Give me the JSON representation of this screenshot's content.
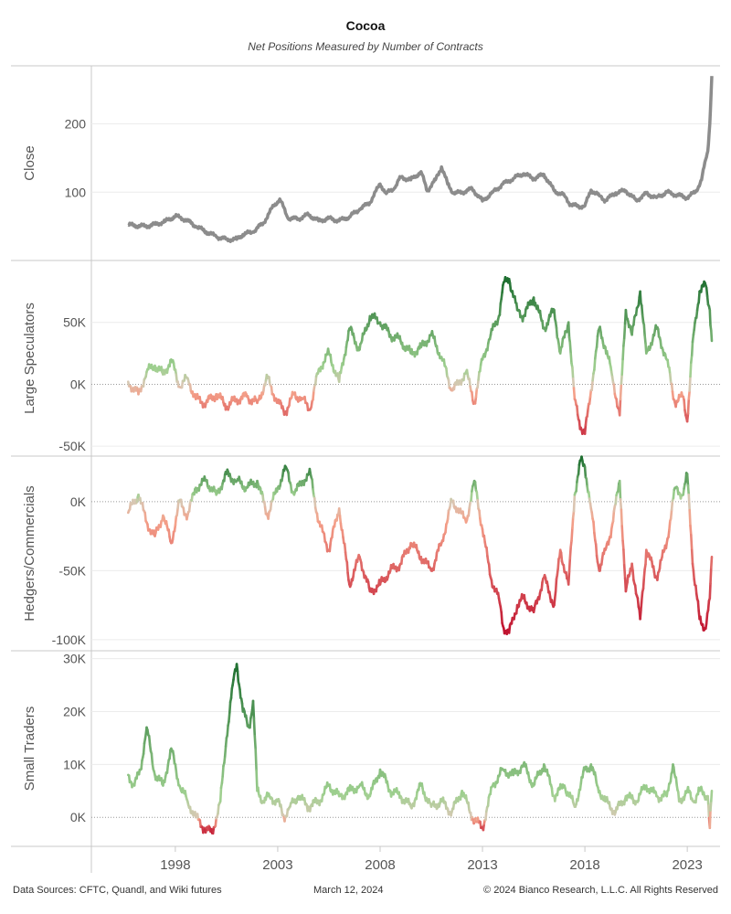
{
  "title": "Cocoa",
  "subtitle": "Net Positions Measured by Number of Contracts",
  "footer": {
    "sources": "Data Sources: CFTC, Quandl, and Wiki futures",
    "date": "March 12, 2024",
    "copyright": "© 2024 Bianco Research, L.L.C. All Rights Reserved"
  },
  "colors": {
    "close": "#8c8c8c",
    "negative_strong": "#c0122f",
    "negative_light": "#f4a089",
    "neutral": "#d8c8b4",
    "positive_light": "#9fd090",
    "positive_strong": "#1e6f30"
  },
  "chart_data": {
    "type": "line",
    "x_axis": {
      "ticks": [
        1998,
        2003,
        2008,
        2013,
        2018,
        2023
      ],
      "range": [
        1993.9,
        2024.6
      ]
    },
    "panels": [
      {
        "name": "close",
        "ylabel": "Close",
        "ylim": [
          0,
          285
        ],
        "yticks": [
          100,
          200
        ],
        "ytick_labels": [
          "100",
          "200"
        ],
        "zero_line": false,
        "color_mode": "gray",
        "series": [
          {
            "x": [
              1995.7,
              1996.5,
              1997.0,
              1997.5,
              1998.0,
              1998.5,
              1999.0,
              1999.5,
              2000.0,
              2000.5,
              2001.0,
              2001.3,
              2001.8,
              2002.3,
              2002.8,
              2003.1,
              2003.5,
              2004.0,
              2004.5,
              2005.0,
              2005.5,
              2006.0,
              2006.5,
              2007.0,
              2007.5,
              2008.0,
              2008.3,
              2008.7,
              2009.0,
              2009.5,
              2010.0,
              2010.3,
              2010.7,
              2011.0,
              2011.3,
              2011.6,
              2012.0,
              2012.5,
              2013.0,
              2013.5,
              2014.0,
              2014.5,
              2015.0,
              2015.5,
              2016.0,
              2016.5,
              2017.0,
              2017.3,
              2017.7,
              2018.0,
              2018.3,
              2018.7,
              2019.0,
              2019.5,
              2020.0,
              2020.5,
              2021.0,
              2021.5,
              2022.0,
              2022.5,
              2023.0,
              2023.4,
              2023.7,
              2023.9,
              2024.0,
              2024.1,
              2024.2
            ],
            "y": [
              52,
              50,
              53,
              57,
              65,
              60,
              50,
              42,
              35,
              31,
              31,
              38,
              42,
              55,
              80,
              90,
              62,
              61,
              67,
              58,
              62,
              58,
              64,
              75,
              85,
              112,
              98,
              106,
              122,
              118,
              130,
              102,
              118,
              137,
              112,
              98,
              100,
              105,
              87,
              100,
              112,
              120,
              127,
              120,
              126,
              102,
              95,
              82,
              79,
              80,
              103,
              95,
              88,
              99,
              102,
              88,
              98,
              92,
              100,
              96,
              92,
              100,
              118,
              148,
              160,
              200,
              270
            ]
          }
        ]
      },
      {
        "name": "large-speculators",
        "ylabel": "Large Speculators",
        "ylim": [
          -58000,
          100000
        ],
        "yticks": [
          -50000,
          0,
          50000
        ],
        "ytick_labels": [
          "-50K",
          "0K",
          "50K"
        ],
        "zero_line": true,
        "color_mode": "diverging",
        "cmin": -50000,
        "cmax": 85000,
        "series": [
          {
            "x": [
              1995.7,
              1996.2,
              1996.6,
              1997.0,
              1997.4,
              1997.8,
              1998.2,
              1998.6,
              1999.0,
              1999.5,
              2000.0,
              2000.5,
              2001.0,
              2001.5,
              2002.0,
              2002.5,
              2003.0,
              2003.4,
              2003.8,
              2004.2,
              2004.6,
              2005.0,
              2005.5,
              2006.0,
              2006.5,
              2007.0,
              2007.5,
              2008.0,
              2008.5,
              2009.0,
              2009.5,
              2010.0,
              2010.5,
              2011.0,
              2011.5,
              2011.8,
              2012.2,
              2012.6,
              2013.0,
              2013.4,
              2013.8,
              2014.0,
              2014.3,
              2014.7,
              2015.0,
              2015.5,
              2016.0,
              2016.5,
              2016.8,
              2017.2,
              2017.5,
              2017.8,
              2018.0,
              2018.3,
              2018.7,
              2019.0,
              2019.3,
              2019.7,
              2020.0,
              2020.3,
              2020.7,
              2021.0,
              2021.5,
              2022.0,
              2022.4,
              2022.8,
              2023.0,
              2023.3,
              2023.6,
              2023.9,
              2024.1,
              2024.2
            ],
            "y": [
              2000,
              -8000,
              10000,
              15000,
              8000,
              20000,
              -2000,
              5000,
              -12000,
              -15000,
              -8000,
              -18000,
              -12000,
              -10000,
              -15000,
              5000,
              -15000,
              -22000,
              -8000,
              -12000,
              -20000,
              12000,
              25000,
              2000,
              45000,
              28000,
              55000,
              50000,
              40000,
              35000,
              25000,
              30000,
              40000,
              22000,
              -5000,
              0,
              10000,
              -15000,
              20000,
              40000,
              55000,
              80000,
              85000,
              60000,
              55000,
              70000,
              45000,
              60000,
              25000,
              50000,
              -12000,
              -35000,
              -40000,
              -5000,
              45000,
              30000,
              10000,
              -25000,
              60000,
              40000,
              75000,
              25000,
              45000,
              20000,
              -15000,
              -10000,
              -30000,
              40000,
              75000,
              80000,
              60000,
              35000
            ]
          }
        ]
      },
      {
        "name": "hedgers-commercials",
        "ylabel": "Hedgers/Commercials",
        "ylim": [
          -108000,
          33000
        ],
        "yticks": [
          -100000,
          -50000,
          0
        ],
        "ytick_labels": [
          "-100K",
          "-50K",
          "0K"
        ],
        "zero_line": true,
        "color_mode": "diverging",
        "cmin": -95000,
        "cmax": 30000,
        "series": [
          {
            "x": [
              1995.7,
              1996.2,
              1996.6,
              1997.0,
              1997.4,
              1997.8,
              1998.2,
              1998.6,
              1999.0,
              1999.5,
              2000.0,
              2000.5,
              2001.0,
              2001.5,
              2002.0,
              2002.5,
              2003.0,
              2003.4,
              2003.8,
              2004.2,
              2004.6,
              2005.0,
              2005.5,
              2006.0,
              2006.5,
              2007.0,
              2007.5,
              2008.0,
              2008.5,
              2009.0,
              2009.5,
              2010.0,
              2010.5,
              2011.0,
              2011.5,
              2011.8,
              2012.2,
              2012.6,
              2013.0,
              2013.4,
              2013.8,
              2014.0,
              2014.3,
              2014.7,
              2015.0,
              2015.5,
              2016.0,
              2016.5,
              2016.8,
              2017.2,
              2017.5,
              2017.8,
              2018.0,
              2018.3,
              2018.7,
              2019.0,
              2019.3,
              2019.7,
              2020.0,
              2020.3,
              2020.7,
              2021.0,
              2021.5,
              2022.0,
              2022.4,
              2022.8,
              2023.0,
              2023.3,
              2023.6,
              2023.9,
              2024.1,
              2024.2
            ],
            "y": [
              -8000,
              5000,
              -15000,
              -25000,
              -10000,
              -30000,
              0,
              -10000,
              10000,
              15000,
              5000,
              20000,
              15000,
              10000,
              15000,
              -10000,
              10000,
              25000,
              5000,
              15000,
              20000,
              -15000,
              -35000,
              -5000,
              -60000,
              -40000,
              -65000,
              -60000,
              -50000,
              -45000,
              -30000,
              -40000,
              -50000,
              -30000,
              0,
              -5000,
              -15000,
              15000,
              -20000,
              -55000,
              -70000,
              -90000,
              -95000,
              -75000,
              -70000,
              -80000,
              -55000,
              -75000,
              -35000,
              -60000,
              5000,
              30000,
              25000,
              -5000,
              -50000,
              -35000,
              -20000,
              15000,
              -65000,
              -45000,
              -85000,
              -35000,
              -55000,
              -30000,
              10000,
              5000,
              20000,
              -50000,
              -85000,
              -92000,
              -70000,
              -40000
            ]
          }
        ]
      },
      {
        "name": "small-traders",
        "ylabel": "Small Traders",
        "ylim": [
          -5500,
          31500
        ],
        "yticks": [
          0,
          10000,
          20000,
          30000
        ],
        "ytick_labels": [
          "0K",
          "10K",
          "20K",
          "30K"
        ],
        "zero_line": true,
        "color_mode": "diverging",
        "cmin": -3000,
        "cmax": 29000,
        "series": [
          {
            "x": [
              1995.7,
              1996.0,
              1996.3,
              1996.6,
              1997.0,
              1997.4,
              1997.8,
              1998.2,
              1998.6,
              1999.0,
              1999.4,
              1999.8,
              2000.2,
              2000.5,
              2000.8,
              2001.0,
              2001.3,
              2001.6,
              2001.8,
              2002.0,
              2002.3,
              2002.6,
              2003.0,
              2003.3,
              2003.6,
              2004.0,
              2004.5,
              2005.0,
              2005.5,
              2006.0,
              2006.5,
              2007.0,
              2007.5,
              2008.0,
              2008.5,
              2009.0,
              2009.5,
              2010.0,
              2010.5,
              2011.0,
              2011.5,
              2012.0,
              2012.5,
              2013.0,
              2013.5,
              2014.0,
              2014.5,
              2015.0,
              2015.5,
              2016.0,
              2016.5,
              2017.0,
              2017.5,
              2018.0,
              2018.3,
              2018.6,
              2019.0,
              2019.5,
              2020.0,
              2020.5,
              2021.0,
              2021.5,
              2022.0,
              2022.3,
              2022.6,
              2023.0,
              2023.3,
              2023.6,
              2024.0,
              2024.1,
              2024.2
            ],
            "y": [
              8000,
              6000,
              9000,
              17000,
              8000,
              6000,
              13000,
              6000,
              3000,
              0,
              -2000,
              -3000,
              3000,
              15000,
              25000,
              29000,
              20000,
              17000,
              22000,
              5000,
              3000,
              4000,
              3000,
              0,
              2000,
              4000,
              2000,
              3000,
              6000,
              4000,
              5000,
              6000,
              4000,
              9000,
              5000,
              4000,
              2000,
              6000,
              2000,
              3000,
              1000,
              5000,
              0,
              -2000,
              6000,
              9000,
              8000,
              10000,
              6000,
              10000,
              4000,
              6000,
              2000,
              9000,
              10000,
              6000,
              3000,
              1000,
              4000,
              3000,
              6000,
              4000,
              4000,
              10000,
              3000,
              5000,
              3000,
              5000,
              4000,
              -2000,
              5000
            ]
          }
        ]
      }
    ]
  }
}
